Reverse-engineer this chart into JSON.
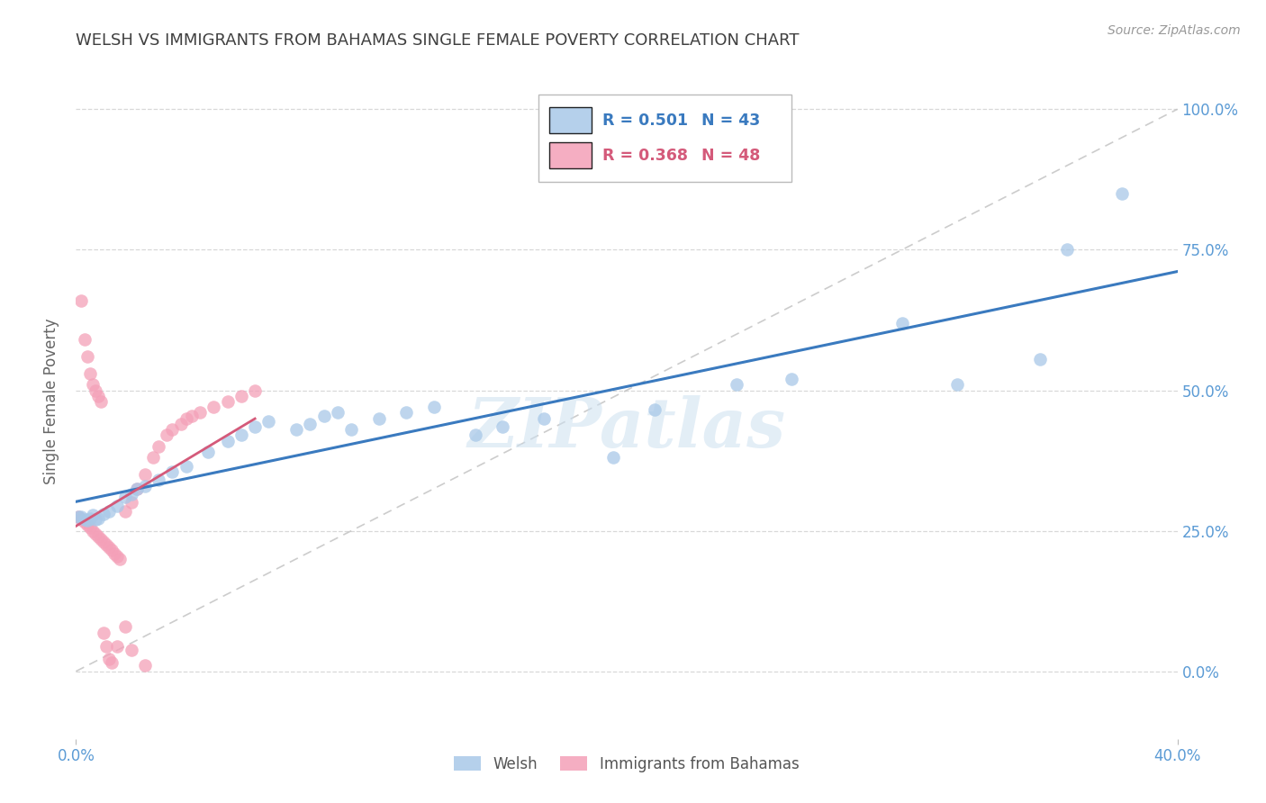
{
  "title": "WELSH VS IMMIGRANTS FROM BAHAMAS SINGLE FEMALE POVERTY CORRELATION CHART",
  "source": "Source: ZipAtlas.com",
  "ylabel": "Single Female Poverty",
  "legend_label1": "Welsh",
  "legend_label2": "Immigrants from Bahamas",
  "R1": "0.501",
  "N1": "43",
  "R2": "0.368",
  "N2": "48",
  "watermark": "ZIPatlas",
  "color_blue": "#a8c8e8",
  "color_pink": "#f4a0b8",
  "line_blue": "#3a7abf",
  "line_pink": "#d45a7a",
  "axis_color": "#5b9bd5",
  "title_color": "#404040",
  "xmin": 0.0,
  "xmax": 0.4,
  "ymin": -0.12,
  "ymax": 1.08,
  "xtick_positions": [
    0.0,
    0.4
  ],
  "xtick_labels": [
    "0.0%",
    "40.0%"
  ],
  "ytick_positions": [
    0.0,
    0.25,
    0.5,
    0.75,
    1.0
  ],
  "ytick_labels": [
    "0.0%",
    "25.0%",
    "50.0%",
    "75.0%",
    "100.0%"
  ],
  "welsh_x": [
    0.001,
    0.002,
    0.003,
    0.004,
    0.005,
    0.006,
    0.007,
    0.008,
    0.01,
    0.012,
    0.015,
    0.018,
    0.02,
    0.022,
    0.025,
    0.03,
    0.035,
    0.04,
    0.048,
    0.055,
    0.06,
    0.065,
    0.07,
    0.08,
    0.085,
    0.09,
    0.095,
    0.1,
    0.11,
    0.12,
    0.13,
    0.145,
    0.155,
    0.17,
    0.195,
    0.21,
    0.24,
    0.26,
    0.3,
    0.32,
    0.35,
    0.36,
    0.38
  ],
  "welsh_y": [
    0.275,
    0.275,
    0.27,
    0.268,
    0.272,
    0.278,
    0.27,
    0.272,
    0.28,
    0.285,
    0.295,
    0.31,
    0.315,
    0.325,
    0.33,
    0.34,
    0.355,
    0.365,
    0.39,
    0.41,
    0.42,
    0.435,
    0.445,
    0.43,
    0.44,
    0.455,
    0.46,
    0.43,
    0.45,
    0.46,
    0.47,
    0.42,
    0.435,
    0.45,
    0.38,
    0.465,
    0.51,
    0.52,
    0.62,
    0.51,
    0.555,
    0.75,
    0.85
  ],
  "bahamas_x": [
    0.001,
    0.002,
    0.003,
    0.004,
    0.005,
    0.006,
    0.007,
    0.008,
    0.009,
    0.01,
    0.011,
    0.012,
    0.013,
    0.014,
    0.015,
    0.016,
    0.018,
    0.02,
    0.022,
    0.025,
    0.028,
    0.03,
    0.033,
    0.035,
    0.038,
    0.04,
    0.042,
    0.045,
    0.05,
    0.055,
    0.06,
    0.065,
    0.002,
    0.003,
    0.004,
    0.005,
    0.006,
    0.007,
    0.008,
    0.009,
    0.01,
    0.011,
    0.012,
    0.013,
    0.015,
    0.018,
    0.02,
    0.025
  ],
  "bahamas_y": [
    0.275,
    0.27,
    0.265,
    0.26,
    0.255,
    0.25,
    0.245,
    0.24,
    0.235,
    0.23,
    0.225,
    0.22,
    0.215,
    0.21,
    0.205,
    0.2,
    0.285,
    0.3,
    0.325,
    0.35,
    0.38,
    0.4,
    0.42,
    0.43,
    0.44,
    0.45,
    0.455,
    0.46,
    0.47,
    0.48,
    0.49,
    0.5,
    0.66,
    0.59,
    0.56,
    0.53,
    0.51,
    0.5,
    0.49,
    0.48,
    0.068,
    0.045,
    0.022,
    0.015,
    0.045,
    0.08,
    0.038,
    0.01
  ],
  "grid_color": "#d8d8d8",
  "background_color": "#ffffff"
}
